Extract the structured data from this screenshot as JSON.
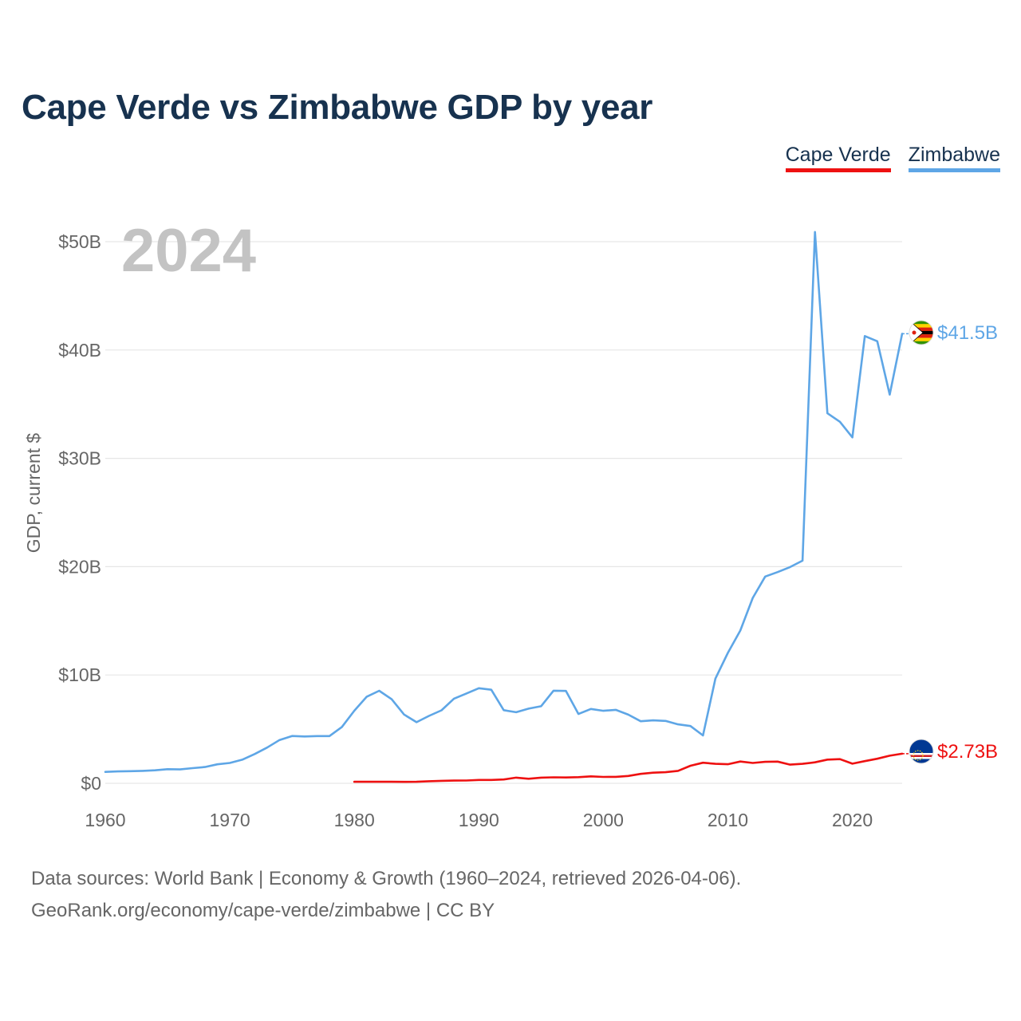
{
  "title": "Cape Verde vs Zimbabwe GDP by year",
  "legend": [
    "Cape Verde",
    "Zimbabwe"
  ],
  "year_label": "2024",
  "footer": {
    "line1": "Data sources: World Bank | Economy & Growth (1960–2024, retrieved 2026-04-06).",
    "line2": "GeoRank.org/economy/cape-verde/zimbabwe | CC BY"
  },
  "colors": {
    "cape_verde": "#ee1111",
    "zimbabwe": "#5ea6e6",
    "title": "#17324f",
    "grid": "#e6e6e6"
  },
  "chart_data": {
    "type": "line",
    "title": "Cape Verde vs Zimbabwe GDP by year",
    "xlabel": "",
    "ylabel": "GDP, current $",
    "xlim": [
      1960,
      2024
    ],
    "ylim": [
      0,
      50
    ],
    "y_unit": "billions USD",
    "x_ticks": [
      1960,
      1970,
      1980,
      1990,
      2000,
      2010,
      2020
    ],
    "x_tick_labels": [
      "1960",
      "1970",
      "1980",
      "1990",
      "2000",
      "2010",
      "2020"
    ],
    "y_ticks": [
      0,
      10,
      20,
      30,
      40,
      50
    ],
    "y_tick_labels": [
      "$0",
      "$10B",
      "$20B",
      "$30B",
      "$40B",
      "$50B"
    ],
    "grid": true,
    "legend_position": "top-right",
    "series": [
      {
        "name": "Cape Verde",
        "color": "#ee1111",
        "end_label": "$2.73B",
        "flag": "cape-verde-flag",
        "x": [
          1980,
          1981,
          1982,
          1983,
          1984,
          1985,
          1986,
          1987,
          1988,
          1989,
          1990,
          1991,
          1992,
          1993,
          1994,
          1995,
          1996,
          1997,
          1998,
          1999,
          2000,
          2001,
          2002,
          2003,
          2004,
          2005,
          2006,
          2007,
          2008,
          2009,
          2010,
          2011,
          2012,
          2013,
          2014,
          2015,
          2016,
          2017,
          2018,
          2019,
          2020,
          2021,
          2022,
          2023,
          2024
        ],
        "values": [
          0.14,
          0.14,
          0.14,
          0.14,
          0.13,
          0.14,
          0.19,
          0.23,
          0.25,
          0.26,
          0.31,
          0.31,
          0.35,
          0.52,
          0.42,
          0.52,
          0.55,
          0.54,
          0.57,
          0.64,
          0.59,
          0.6,
          0.68,
          0.87,
          0.98,
          1.02,
          1.15,
          1.62,
          1.9,
          1.8,
          1.76,
          2.01,
          1.88,
          1.98,
          2.0,
          1.72,
          1.8,
          1.94,
          2.19,
          2.23,
          1.81,
          2.05,
          2.27,
          2.55,
          2.73
        ]
      },
      {
        "name": "Zimbabwe",
        "color": "#5ea6e6",
        "end_label": "$41.5B",
        "flag": "zimbabwe-flag",
        "x": [
          1960,
          1961,
          1962,
          1963,
          1964,
          1965,
          1966,
          1967,
          1968,
          1969,
          1970,
          1971,
          1972,
          1973,
          1974,
          1975,
          1976,
          1977,
          1978,
          1979,
          1980,
          1981,
          1982,
          1983,
          1984,
          1985,
          1986,
          1987,
          1988,
          1989,
          1990,
          1991,
          1992,
          1993,
          1994,
          1995,
          1996,
          1997,
          1998,
          1999,
          2000,
          2001,
          2002,
          2003,
          2004,
          2005,
          2006,
          2007,
          2008,
          2009,
          2010,
          2011,
          2012,
          2013,
          2014,
          2015,
          2016,
          2017,
          2018,
          2019,
          2020,
          2021,
          2022,
          2023,
          2024
        ],
        "values": [
          1.05,
          1.1,
          1.12,
          1.15,
          1.2,
          1.3,
          1.28,
          1.4,
          1.5,
          1.75,
          1.88,
          2.18,
          2.7,
          3.3,
          4.0,
          4.37,
          4.32,
          4.36,
          4.36,
          5.2,
          6.7,
          8.0,
          8.54,
          7.76,
          6.35,
          5.64,
          6.22,
          6.74,
          7.81,
          8.29,
          8.78,
          8.64,
          6.75,
          6.56,
          6.89,
          7.11,
          8.55,
          8.53,
          6.4,
          6.86,
          6.69,
          6.78,
          6.34,
          5.73,
          5.81,
          5.76,
          5.44,
          5.29,
          4.42,
          9.67,
          12.04,
          14.1,
          17.11,
          19.09,
          19.5,
          19.96,
          20.55,
          50.9,
          34.16,
          33.37,
          31.94,
          41.29,
          40.81,
          35.88,
          41.5
        ]
      }
    ]
  }
}
